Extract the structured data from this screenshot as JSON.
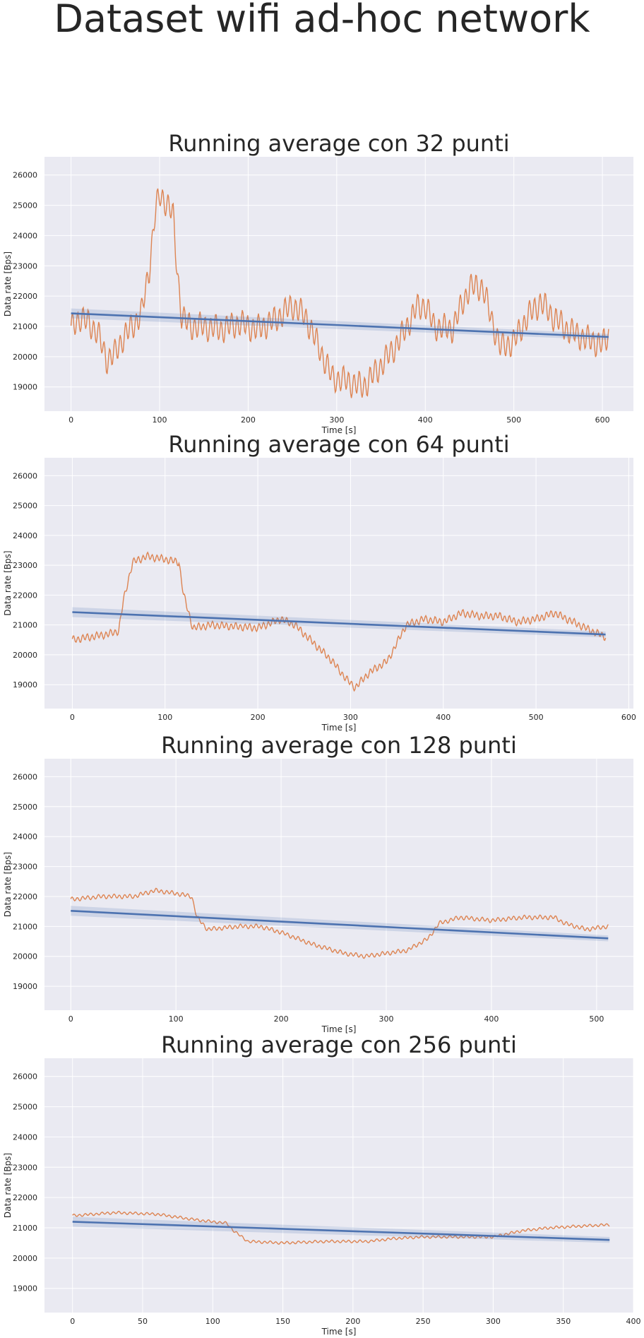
{
  "figure": {
    "title": "Dataset wifi ad-hoc network",
    "colors": {
      "background": "#EAEAF2",
      "grid": "#FFFFFF",
      "signal": "#DD8452",
      "trend": "#4C72B0"
    }
  },
  "chart_data": [
    {
      "type": "line",
      "title": "Running average con 32 punti",
      "xlabel": "Time [s]",
      "ylabel": "Data rate [Bps]",
      "xlim": [
        -30,
        635
      ],
      "ylim": [
        18200,
        26600
      ],
      "xticks": [
        0,
        100,
        200,
        300,
        400,
        500,
        600
      ],
      "yticks": [
        19000,
        20000,
        21000,
        22000,
        23000,
        24000,
        25000,
        26000
      ],
      "grid": true,
      "trend": {
        "start": [
          0,
          21430
        ],
        "end": [
          607,
          20650
        ]
      },
      "signal_keypoints": [
        [
          0,
          20900
        ],
        [
          10,
          21300
        ],
        [
          20,
          21100
        ],
        [
          30,
          20800
        ],
        [
          40,
          19900
        ],
        [
          50,
          20100
        ],
        [
          60,
          20700
        ],
        [
          70,
          21000
        ],
        [
          80,
          21500
        ],
        [
          88,
          22800
        ],
        [
          95,
          24800
        ],
        [
          100,
          25300
        ],
        [
          108,
          25100
        ],
        [
          115,
          24700
        ],
        [
          120,
          22800
        ],
        [
          125,
          21300
        ],
        [
          135,
          21000
        ],
        [
          150,
          21000
        ],
        [
          170,
          20900
        ],
        [
          190,
          21100
        ],
        [
          210,
          20900
        ],
        [
          230,
          21200
        ],
        [
          250,
          21700
        ],
        [
          265,
          21300
        ],
        [
          280,
          20300
        ],
        [
          295,
          19300
        ],
        [
          310,
          19200
        ],
        [
          330,
          19000
        ],
        [
          350,
          19700
        ],
        [
          370,
          20500
        ],
        [
          390,
          21600
        ],
        [
          400,
          21700
        ],
        [
          410,
          21000
        ],
        [
          430,
          20900
        ],
        [
          440,
          21600
        ],
        [
          450,
          22300
        ],
        [
          465,
          22300
        ],
        [
          475,
          21200
        ],
        [
          485,
          20300
        ],
        [
          500,
          20500
        ],
        [
          515,
          21300
        ],
        [
          530,
          21800
        ],
        [
          545,
          21300
        ],
        [
          560,
          20900
        ],
        [
          580,
          20600
        ],
        [
          600,
          20400
        ],
        [
          607,
          20700
        ]
      ],
      "signal_oscillation": {
        "amplitude": 500,
        "period": 6
      }
    },
    {
      "type": "line",
      "title": "Running average con 64 punti",
      "xlabel": "Time [s]",
      "ylabel": "Data rate [Bps]",
      "xlim": [
        -30,
        605
      ],
      "ylim": [
        18200,
        26600
      ],
      "xticks": [
        0,
        100,
        200,
        300,
        400,
        500,
        600
      ],
      "yticks": [
        19000,
        20000,
        21000,
        22000,
        23000,
        24000,
        25000,
        26000
      ],
      "grid": true,
      "trend": {
        "start": [
          0,
          21430
        ],
        "end": [
          575,
          20680
        ]
      },
      "signal_keypoints": [
        [
          0,
          20500
        ],
        [
          20,
          20600
        ],
        [
          40,
          20700
        ],
        [
          50,
          20800
        ],
        [
          55,
          21800
        ],
        [
          65,
          23100
        ],
        [
          80,
          23300
        ],
        [
          100,
          23200
        ],
        [
          115,
          23100
        ],
        [
          120,
          22000
        ],
        [
          130,
          20900
        ],
        [
          150,
          21000
        ],
        [
          200,
          20900
        ],
        [
          225,
          21200
        ],
        [
          240,
          21000
        ],
        [
          260,
          20400
        ],
        [
          280,
          19800
        ],
        [
          295,
          19200
        ],
        [
          305,
          18900
        ],
        [
          320,
          19400
        ],
        [
          340,
          19800
        ],
        [
          360,
          21000
        ],
        [
          380,
          21200
        ],
        [
          400,
          21100
        ],
        [
          420,
          21400
        ],
        [
          440,
          21300
        ],
        [
          460,
          21300
        ],
        [
          480,
          21100
        ],
        [
          500,
          21200
        ],
        [
          520,
          21400
        ],
        [
          540,
          21100
        ],
        [
          560,
          20800
        ],
        [
          575,
          20600
        ]
      ],
      "signal_oscillation": {
        "amplitude": 140,
        "period": 5
      }
    },
    {
      "type": "line",
      "title": "Running average con 128 punti",
      "xlabel": "Time [s]",
      "ylabel": "Data rate [Bps]",
      "xlim": [
        -25,
        535
      ],
      "ylim": [
        18200,
        26600
      ],
      "xticks": [
        0,
        100,
        200,
        300,
        400,
        500
      ],
      "yticks": [
        19000,
        20000,
        21000,
        22000,
        23000,
        24000,
        25000,
        26000
      ],
      "grid": true,
      "trend": {
        "start": [
          0,
          21520
        ],
        "end": [
          511,
          20600
        ]
      },
      "signal_keypoints": [
        [
          0,
          21900
        ],
        [
          30,
          22000
        ],
        [
          60,
          22000
        ],
        [
          80,
          22200
        ],
        [
          100,
          22100
        ],
        [
          115,
          22000
        ],
        [
          120,
          21300
        ],
        [
          130,
          20900
        ],
        [
          160,
          21000
        ],
        [
          180,
          21000
        ],
        [
          200,
          20800
        ],
        [
          230,
          20400
        ],
        [
          260,
          20100
        ],
        [
          280,
          20000
        ],
        [
          300,
          20100
        ],
        [
          320,
          20200
        ],
        [
          340,
          20600
        ],
        [
          350,
          21100
        ],
        [
          370,
          21300
        ],
        [
          400,
          21200
        ],
        [
          430,
          21300
        ],
        [
          460,
          21300
        ],
        [
          470,
          21100
        ],
        [
          490,
          20900
        ],
        [
          511,
          21000
        ]
      ],
      "signal_oscillation": {
        "amplitude": 80,
        "period": 5
      }
    },
    {
      "type": "line",
      "title": "Running average con 256 punti",
      "xlabel": "Time [s]",
      "ylabel": "Data rate [Bps]",
      "xlim": [
        -20,
        400
      ],
      "ylim": [
        18200,
        26600
      ],
      "xticks": [
        0,
        50,
        100,
        150,
        200,
        250,
        300,
        350,
        400
      ],
      "yticks": [
        19000,
        20000,
        21000,
        22000,
        23000,
        24000,
        25000,
        26000
      ],
      "grid": true,
      "trend": {
        "start": [
          0,
          21200
        ],
        "end": [
          383,
          20600
        ]
      },
      "signal_keypoints": [
        [
          0,
          21400
        ],
        [
          30,
          21500
        ],
        [
          60,
          21450
        ],
        [
          90,
          21250
        ],
        [
          110,
          21150
        ],
        [
          115,
          20900
        ],
        [
          125,
          20550
        ],
        [
          150,
          20500
        ],
        [
          180,
          20550
        ],
        [
          210,
          20550
        ],
        [
          230,
          20650
        ],
        [
          250,
          20700
        ],
        [
          280,
          20700
        ],
        [
          300,
          20700
        ],
        [
          320,
          20900
        ],
        [
          340,
          21000
        ],
        [
          360,
          21050
        ],
        [
          383,
          21100
        ]
      ],
      "signal_oscillation": {
        "amplitude": 50,
        "period": 4
      }
    }
  ]
}
